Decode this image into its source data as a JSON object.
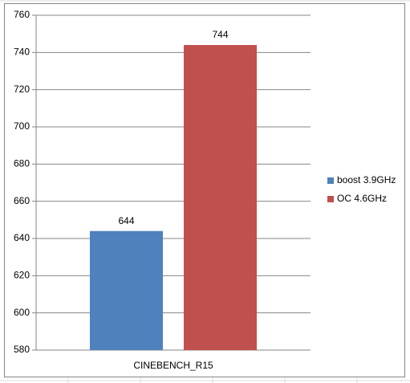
{
  "chart_data": {
    "type": "bar",
    "categories": [
      "CINEBENCH_R15"
    ],
    "series": [
      {
        "name": "boost 3.9GHz",
        "color": "#4f81bd",
        "values": [
          644
        ]
      },
      {
        "name": "OC 4.6GHz",
        "color": "#c0504d",
        "values": [
          744
        ]
      }
    ],
    "ylim": [
      580,
      760
    ],
    "yticks": [
      580,
      600,
      620,
      640,
      660,
      680,
      700,
      720,
      740,
      760
    ],
    "grid": true,
    "legend": "right"
  }
}
